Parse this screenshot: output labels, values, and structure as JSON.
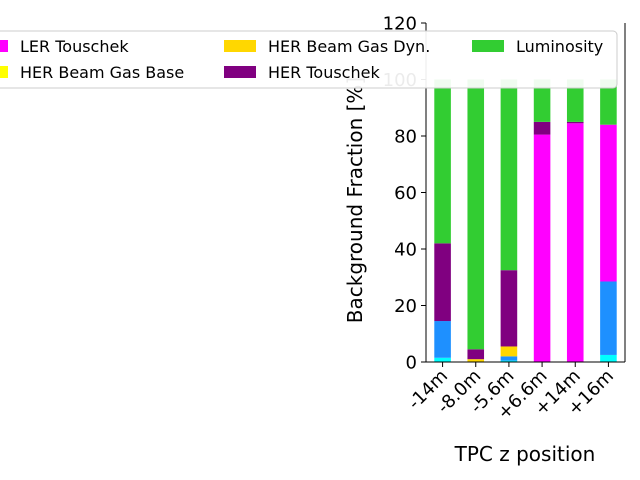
{
  "chart_data": {
    "type": "bar",
    "stacked": true,
    "categories": [
      "-14m",
      "-8.0m",
      "-5.6m",
      "+6.6m",
      "+14m",
      "+16m"
    ],
    "xlabel": "TPC z position",
    "ylabel": "Background Fraction [%]",
    "ylim": [
      0,
      120
    ],
    "yticks": [
      0,
      20,
      40,
      60,
      80,
      100,
      120
    ],
    "legend_position": "top",
    "series": [
      {
        "name": "",
        "color": "#00ffff",
        "values": [
          1.5,
          0,
          0.5,
          0,
          0,
          2.5
        ]
      },
      {
        "name": "",
        "color": "#1e90ff",
        "values": [
          13,
          0,
          1.5,
          0,
          0,
          26
        ]
      },
      {
        "name": "HER Beam Gas Dyn.",
        "color": "#ffd700",
        "values": [
          0,
          1,
          3.5,
          0,
          0,
          0
        ]
      },
      {
        "name": "HER Beam Gas Base",
        "color": "#ffff00",
        "values": [
          0,
          0,
          0,
          0,
          0,
          0
        ]
      },
      {
        "name": "LER Touschek",
        "color": "#ff00ff",
        "values": [
          0,
          0,
          0,
          80.5,
          84.5,
          55.5
        ]
      },
      {
        "name": "HER Touschek",
        "color": "#800080",
        "values": [
          27.5,
          3.5,
          27,
          4.5,
          0.5,
          0
        ]
      },
      {
        "name": "Luminosity",
        "color": "#32cd32",
        "values": [
          58,
          95.5,
          67.5,
          15,
          15,
          16
        ]
      }
    ],
    "legend": [
      {
        "label": "LER Touschek",
        "color": "#ff00ff"
      },
      {
        "label": "HER Beam Gas Dyn.",
        "color": "#ffd700"
      },
      {
        "label": "Luminosity",
        "color": "#32cd32"
      },
      {
        "label": "HER Beam Gas Base",
        "color": "#ffff00"
      },
      {
        "label": "HER Touschek",
        "color": "#800080"
      }
    ]
  }
}
